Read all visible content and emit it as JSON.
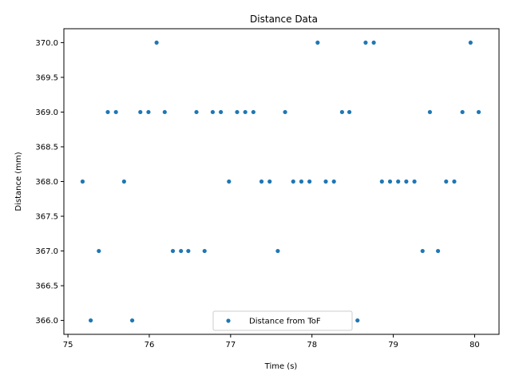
{
  "chart_data": {
    "type": "scatter",
    "title": "Distance Data",
    "xlabel": "Time (s)",
    "ylabel": "Distance (mm)",
    "xlim": [
      74.95,
      80.3
    ],
    "ylim": [
      365.8,
      370.2
    ],
    "xticks": [
      75,
      76,
      77,
      78,
      79,
      80
    ],
    "xtick_labels": [
      "75",
      "76",
      "77",
      "78",
      "79",
      "80"
    ],
    "yticks": [
      366.0,
      366.5,
      367.0,
      367.5,
      368.0,
      368.5,
      369.0,
      369.5,
      370.0
    ],
    "ytick_labels": [
      "366.0",
      "366.5",
      "367.0",
      "367.5",
      "368.0",
      "368.5",
      "369.0",
      "369.5",
      "370.0"
    ],
    "grid": false,
    "legend_position": "bottom-center",
    "series": [
      {
        "name": "Distance from ToF",
        "color": "#1f77b4",
        "marker": "dot",
        "points": [
          [
            75.18,
            368
          ],
          [
            75.28,
            366
          ],
          [
            75.38,
            367
          ],
          [
            75.49,
            369
          ],
          [
            75.59,
            369
          ],
          [
            75.69,
            368
          ],
          [
            75.79,
            366
          ],
          [
            75.89,
            369
          ],
          [
            75.99,
            369
          ],
          [
            76.09,
            370
          ],
          [
            76.19,
            369
          ],
          [
            76.29,
            367
          ],
          [
            76.39,
            367
          ],
          [
            76.48,
            367
          ],
          [
            76.58,
            369
          ],
          [
            76.68,
            367
          ],
          [
            76.78,
            369
          ],
          [
            76.88,
            369
          ],
          [
            76.98,
            368
          ],
          [
            77.08,
            369
          ],
          [
            77.18,
            369
          ],
          [
            77.28,
            369
          ],
          [
            77.38,
            368
          ],
          [
            77.48,
            368
          ],
          [
            77.58,
            367
          ],
          [
            77.67,
            369
          ],
          [
            77.77,
            368
          ],
          [
            77.87,
            368
          ],
          [
            77.97,
            368
          ],
          [
            78.07,
            370
          ],
          [
            78.17,
            368
          ],
          [
            78.27,
            368
          ],
          [
            78.37,
            369
          ],
          [
            78.46,
            369
          ],
          [
            78.56,
            366
          ],
          [
            78.66,
            370
          ],
          [
            78.76,
            370
          ],
          [
            78.86,
            368
          ],
          [
            78.96,
            368
          ],
          [
            79.06,
            368
          ],
          [
            79.16,
            368
          ],
          [
            79.26,
            368
          ],
          [
            79.36,
            367
          ],
          [
            79.45,
            369
          ],
          [
            79.55,
            367
          ],
          [
            79.65,
            368
          ],
          [
            79.75,
            368
          ],
          [
            79.85,
            369
          ],
          [
            79.95,
            370
          ],
          [
            80.05,
            369
          ]
        ]
      }
    ]
  }
}
